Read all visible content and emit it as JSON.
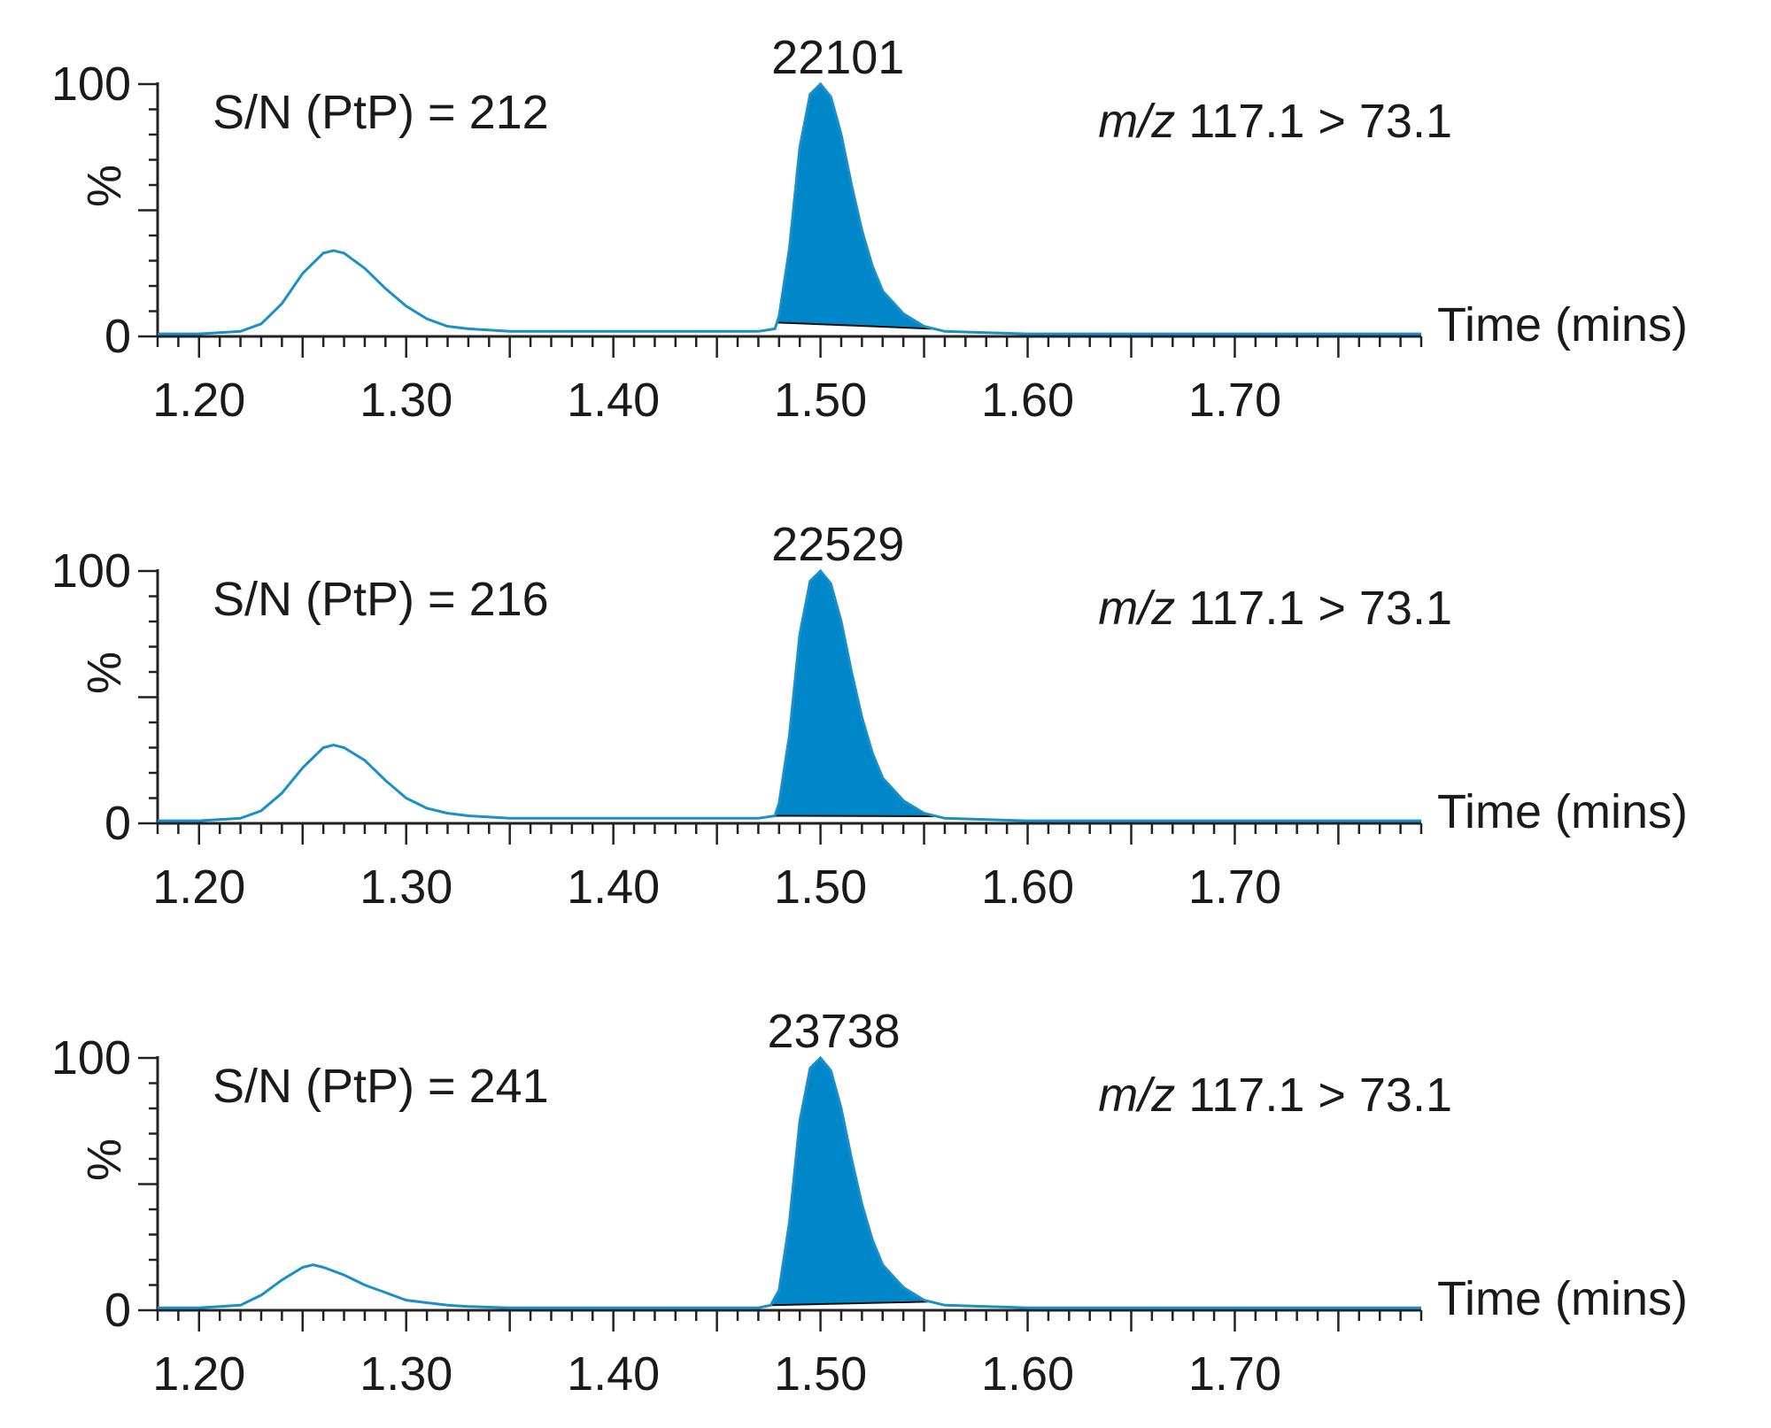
{
  "chart_data": [
    {
      "type": "line",
      "title": "",
      "xlabel": "Time (mins)",
      "ylabel": "%",
      "xlim": [
        1.18,
        1.79
      ],
      "ylim": [
        0,
        100
      ],
      "xticks": [
        "1.20",
        "1.30",
        "1.40",
        "1.50",
        "1.60",
        "1.70"
      ],
      "yticks": [
        "0",
        "100"
      ],
      "annotation_sn": "S/N (PtP) = 212",
      "transition_prefix": "m/z",
      "transition_suffix": "117.1 > 73.1",
      "peak": {
        "label": "22101",
        "rt": 1.502,
        "start": 1.479,
        "end": 1.555
      },
      "series": [
        {
          "x": [
            1.18,
            1.2,
            1.22,
            1.23,
            1.24,
            1.25,
            1.26,
            1.265,
            1.27,
            1.28,
            1.29,
            1.3,
            1.31,
            1.32,
            1.33,
            1.35,
            1.4,
            1.45,
            1.47,
            1.478,
            1.48,
            1.485,
            1.49,
            1.495,
            1.5,
            1.505,
            1.51,
            1.515,
            1.52,
            1.525,
            1.53,
            1.54,
            1.55,
            1.56,
            1.58,
            1.6,
            1.65,
            1.7,
            1.75,
            1.79
          ],
          "y": [
            1,
            1,
            2,
            5,
            13,
            25,
            33,
            34,
            33,
            27,
            19,
            12,
            7,
            4,
            3,
            2,
            2,
            2,
            2,
            3,
            8,
            35,
            75,
            96,
            100,
            95,
            80,
            60,
            42,
            28,
            18,
            9,
            4,
            2,
            1.5,
            1,
            1,
            1,
            1,
            1
          ]
        }
      ]
    },
    {
      "type": "line",
      "title": "",
      "xlabel": "Time (mins)",
      "ylabel": "%",
      "xlim": [
        1.18,
        1.79
      ],
      "ylim": [
        0,
        100
      ],
      "xticks": [
        "1.20",
        "1.30",
        "1.40",
        "1.50",
        "1.60",
        "1.70"
      ],
      "yticks": [
        "0",
        "100"
      ],
      "annotation_sn": "S/N (PtP) = 216",
      "transition_prefix": "m/z",
      "transition_suffix": "117.1 > 73.1",
      "peak": {
        "label": "22529",
        "rt": 1.502,
        "start": 1.478,
        "end": 1.556
      },
      "series": [
        {
          "x": [
            1.18,
            1.2,
            1.22,
            1.23,
            1.24,
            1.25,
            1.26,
            1.265,
            1.27,
            1.28,
            1.29,
            1.3,
            1.31,
            1.32,
            1.33,
            1.35,
            1.4,
            1.45,
            1.47,
            1.478,
            1.48,
            1.485,
            1.49,
            1.495,
            1.5,
            1.505,
            1.51,
            1.515,
            1.52,
            1.525,
            1.53,
            1.54,
            1.55,
            1.56,
            1.58,
            1.6,
            1.65,
            1.7,
            1.75,
            1.79
          ],
          "y": [
            1,
            1,
            2,
            5,
            12,
            22,
            30,
            31,
            30,
            25,
            17,
            10,
            6,
            4,
            3,
            2,
            2,
            2,
            2,
            3,
            8,
            35,
            75,
            96,
            100,
            95,
            80,
            60,
            42,
            28,
            18,
            9,
            4,
            2,
            1.5,
            1,
            1,
            1,
            1,
            1
          ]
        }
      ]
    },
    {
      "type": "line",
      "title": "",
      "xlabel": "Time (mins)",
      "ylabel": "%",
      "xlim": [
        1.18,
        1.79
      ],
      "ylim": [
        0,
        100
      ],
      "xticks": [
        "1.20",
        "1.30",
        "1.40",
        "1.50",
        "1.60",
        "1.70"
      ],
      "yticks": [
        "0",
        "100"
      ],
      "annotation_sn": "S/N (PtP) = 241",
      "transition_prefix": "m/z",
      "transition_suffix": "117.1 > 73.1",
      "peak": {
        "label": "23738",
        "rt": 1.5,
        "start": 1.476,
        "end": 1.553
      },
      "series": [
        {
          "x": [
            1.18,
            1.2,
            1.22,
            1.23,
            1.24,
            1.25,
            1.255,
            1.26,
            1.27,
            1.28,
            1.29,
            1.3,
            1.31,
            1.32,
            1.33,
            1.35,
            1.4,
            1.45,
            1.47,
            1.476,
            1.48,
            1.485,
            1.49,
            1.495,
            1.5,
            1.505,
            1.51,
            1.515,
            1.52,
            1.525,
            1.53,
            1.54,
            1.55,
            1.56,
            1.58,
            1.6,
            1.65,
            1.7,
            1.75,
            1.79
          ],
          "y": [
            1,
            1,
            2,
            6,
            12,
            17,
            18,
            17,
            14,
            10,
            7,
            4,
            3,
            2,
            1.5,
            1,
            1,
            1,
            1,
            2,
            8,
            35,
            75,
            96,
            100,
            95,
            80,
            60,
            42,
            28,
            18,
            9,
            4,
            2,
            1.5,
            1,
            1,
            1,
            1,
            1
          ]
        }
      ]
    }
  ]
}
